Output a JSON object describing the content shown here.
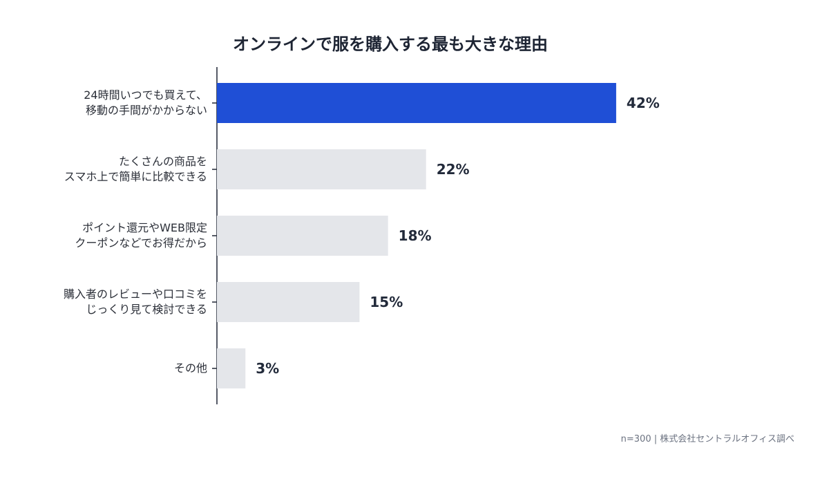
{
  "chart_data": {
    "type": "hbar",
    "title": "オンラインで服を購入する最も大きな理由",
    "categories": [
      "24時間いつでも買えて、\n移動の手間がかからない",
      "たくさんの商品を\nスマホ上で簡単に比較できる",
      "ポイント還元やWEB限定\nクーポンなどでお得だから",
      "購入者のレビューや口コミを\nじっくり見て検討できる",
      "その他"
    ],
    "values": [
      42,
      22,
      18,
      15,
      3
    ],
    "value_labels": [
      "42%",
      "22%",
      "18%",
      "15%",
      "3%"
    ],
    "colors": [
      "#1f4fd6",
      "#e4e6ea",
      "#e4e6ea",
      "#e4e6ea",
      "#e4e6ea"
    ],
    "note": "n=300 | 株式会社セントラルオフィス調べ"
  }
}
